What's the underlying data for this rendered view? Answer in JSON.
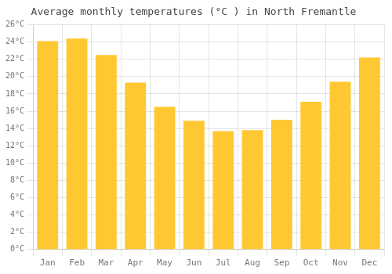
{
  "chart_data": {
    "type": "bar",
    "title": "Average monthly temperatures (°C ) in North Fremantle",
    "categories": [
      "Jan",
      "Feb",
      "Mar",
      "Apr",
      "May",
      "Jun",
      "Jul",
      "Aug",
      "Sep",
      "Oct",
      "Nov",
      "Dec"
    ],
    "values": [
      24.1,
      24.4,
      22.5,
      19.3,
      16.5,
      14.9,
      13.7,
      13.8,
      15.0,
      17.1,
      19.4,
      22.2
    ],
    "color": "#FFC832",
    "ylim": [
      0,
      26
    ],
    "yticks": [
      {
        "value": 0,
        "label": "0°C"
      },
      {
        "value": 2,
        "label": "2°C"
      },
      {
        "value": 4,
        "label": "4°C"
      },
      {
        "value": 6,
        "label": "6°C"
      },
      {
        "value": 8,
        "label": "8°C"
      },
      {
        "value": 10,
        "label": "10°C"
      },
      {
        "value": 12,
        "label": "12°C"
      },
      {
        "value": 14,
        "label": "14°C"
      },
      {
        "value": 16,
        "label": "16°C"
      },
      {
        "value": 18,
        "label": "18°C"
      },
      {
        "value": 20,
        "label": "20°C"
      },
      {
        "value": 22,
        "label": "22°C"
      },
      {
        "value": 24,
        "label": "24°C"
      },
      {
        "value": 26,
        "label": "26°C"
      }
    ],
    "grid": true
  }
}
